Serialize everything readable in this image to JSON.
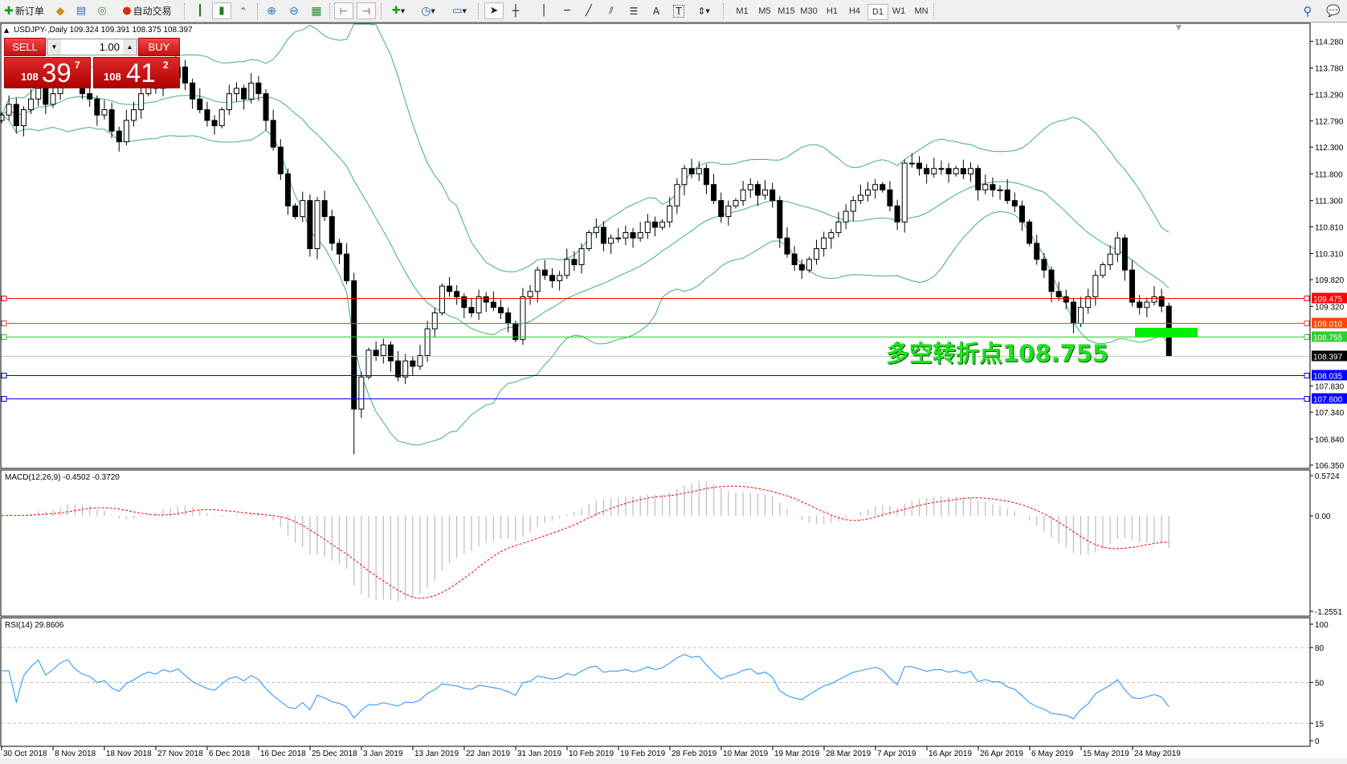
{
  "toolbar": {
    "new_order_label": "新订单",
    "auto_trading_label": "自动交易",
    "timeframes": [
      "M1",
      "M5",
      "M15",
      "M30",
      "H1",
      "H4",
      "D1",
      "W1",
      "MN"
    ],
    "active_timeframe": "D1",
    "text_tool_label": "A"
  },
  "chart": {
    "header": "USDJPY-,Daily  109.324 109.391 108.375 108.397",
    "symbol": "USDJPY-",
    "period": "Daily",
    "ohlc": {
      "open": 109.324,
      "high": 109.391,
      "low": 108.375,
      "close": 108.397
    }
  },
  "trade_panel": {
    "sell_label": "SELL",
    "buy_label": "BUY",
    "volume": "1.00",
    "sell_price": {
      "prefix": "108",
      "big": "39",
      "sup": "7"
    },
    "buy_price": {
      "prefix": "108",
      "big": "41",
      "sup": "2"
    }
  },
  "annotation": "多空转折点108.755",
  "chart_data": {
    "type": "candlestick",
    "price_ticks": [
      "114.280",
      "113.780",
      "113.290",
      "112.790",
      "112.300",
      "111.800",
      "111.300",
      "110.810",
      "110.310",
      "109.820",
      "109.320",
      "107.830",
      "107.340",
      "106.840",
      "106.350"
    ],
    "price_range": [
      106.35,
      114.28
    ],
    "horizontal_lines": [
      {
        "value": "109.475",
        "color": "#ff0000"
      },
      {
        "value": "109.010",
        "color": "#ff4500"
      },
      {
        "value": "108.755",
        "color": "#32cd32"
      },
      {
        "value": "108.035",
        "color": "#0000ff"
      },
      {
        "value": "107.600",
        "color": "#0000ff"
      }
    ],
    "current_price": {
      "value": "108.397",
      "color": "#000000",
      "line_color": "#c0c0c0"
    },
    "pivot_marker_color": "#00ee00",
    "bollinger_color": "#3cb371",
    "date_labels": [
      "30 Oct 2018",
      "8 Nov 2018",
      "18 Nov 2018",
      "27 Nov 2018",
      "6 Dec 2018",
      "16 Dec 2018",
      "25 Dec 2018",
      "3 Jan 2019",
      "13 Jan 2019",
      "22 Jan 2019",
      "31 Jan 2019",
      "10 Feb 2019",
      "19 Feb 2019",
      "28 Feb 2019",
      "10 Mar 2019",
      "19 Mar 2019",
      "28 Mar 2019",
      "7 Apr 2019",
      "16 Apr 2019",
      "26 Apr 2019",
      "6 May 2019",
      "15 May 2019",
      "24 May 2019"
    ],
    "closes": [
      112.9,
      113.1,
      112.7,
      113.0,
      113.2,
      113.4,
      113.1,
      113.3,
      113.6,
      113.8,
      113.5,
      113.3,
      113.2,
      112.9,
      113.0,
      112.6,
      112.4,
      112.8,
      113.0,
      113.3,
      113.5,
      113.4,
      113.7,
      113.6,
      113.8,
      113.5,
      113.2,
      113.0,
      112.8,
      112.7,
      113.0,
      113.3,
      113.4,
      113.2,
      113.5,
      113.3,
      112.8,
      112.3,
      111.8,
      111.2,
      111.0,
      111.3,
      110.4,
      111.3,
      111.0,
      110.5,
      110.3,
      109.8,
      107.4,
      108.0,
      108.5,
      108.4,
      108.6,
      108.3,
      108.0,
      108.3,
      108.2,
      108.4,
      108.9,
      109.2,
      109.7,
      109.6,
      109.5,
      109.3,
      109.2,
      109.5,
      109.4,
      109.3,
      109.2,
      109.0,
      108.7,
      109.5,
      109.6,
      110.0,
      109.9,
      109.8,
      109.9,
      110.2,
      110.1,
      110.4,
      110.7,
      110.8,
      110.5,
      110.6,
      110.6,
      110.7,
      110.6,
      110.7,
      110.9,
      110.8,
      110.9,
      111.2,
      111.6,
      111.9,
      111.8,
      111.9,
      111.6,
      111.3,
      111.0,
      111.2,
      111.3,
      111.5,
      111.6,
      111.4,
      111.5,
      111.3,
      110.6,
      110.3,
      110.1,
      110.0,
      110.2,
      110.4,
      110.6,
      110.7,
      110.9,
      111.1,
      111.3,
      111.4,
      111.5,
      111.6,
      111.5,
      111.2,
      110.9,
      112.0,
      112.0,
      111.9,
      111.8,
      111.9,
      111.9,
      111.8,
      111.9,
      111.8,
      111.9,
      111.5,
      111.6,
      111.5,
      111.5,
      111.3,
      111.2,
      110.9,
      110.5,
      110.2,
      110.0,
      109.6,
      109.5,
      109.4,
      109.0,
      109.3,
      109.5,
      109.9,
      110.1,
      110.3,
      110.6,
      110.0,
      109.4,
      109.3,
      109.4,
      109.5,
      109.324,
      108.397
    ],
    "macd": {
      "title": "MACD(12,26,9) -0.4502 -0.3720",
      "ticks": [
        "0.5724",
        "0.00",
        "-1.2551"
      ],
      "range": [
        -1.2551,
        0.5724
      ],
      "histogram_color": "#c0c0c0",
      "signal_color": "#ff0000"
    },
    "rsi": {
      "title": "RSI(14) 29.8606",
      "ticks": [
        "100",
        "80",
        "50",
        "15",
        "0"
      ],
      "levels": [
        80,
        50,
        15
      ],
      "color": "#1e90ff"
    }
  }
}
